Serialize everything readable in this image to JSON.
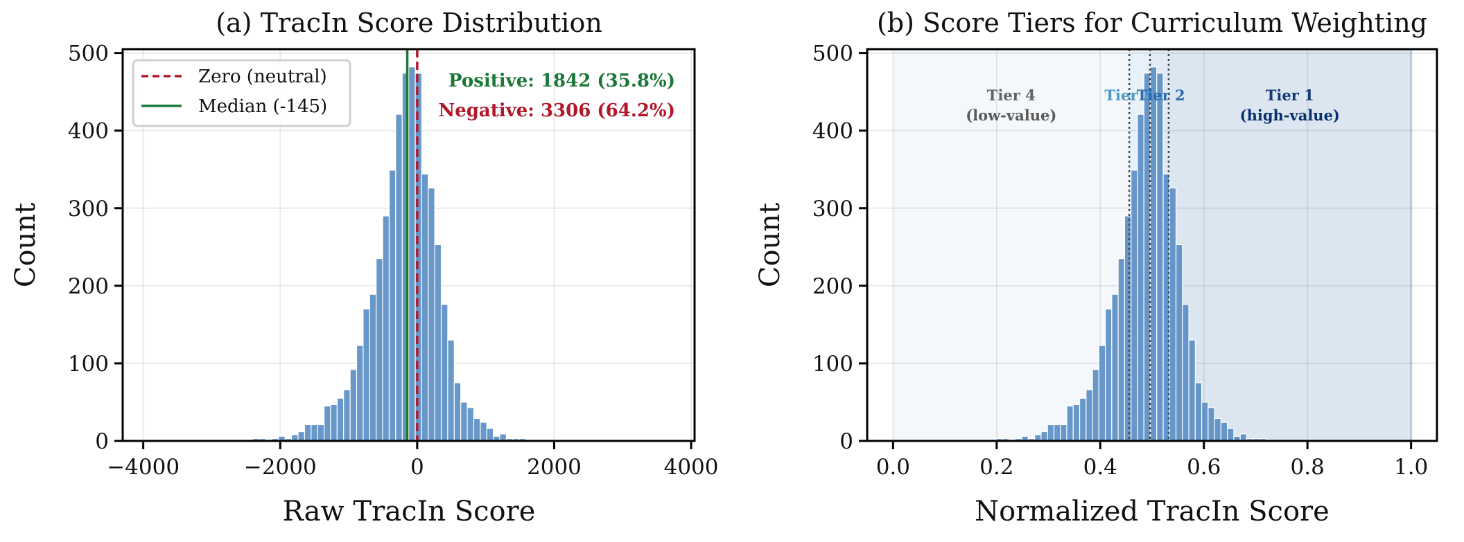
{
  "chart_data": [
    {
      "type": "bar",
      "subtype": "histogram",
      "title": "(a) TracIn Score Distribution",
      "xlabel": "Raw TracIn Score",
      "ylabel": "Count",
      "xlim": [
        -4300,
        4050
      ],
      "ylim": [
        0,
        505
      ],
      "xticks": [
        -4000,
        -2000,
        0,
        2000,
        4000
      ],
      "xtick_labels": [
        "−4000",
        "−2000",
        "0",
        "2000",
        "4000"
      ],
      "yticks": [
        0,
        100,
        200,
        300,
        400,
        500
      ],
      "ytick_labels": [
        "0",
        "100",
        "200",
        "300",
        "400",
        "500"
      ],
      "grid": true,
      "bar_color": "#5b8ec4",
      "bin_start": -2404,
      "bin_width": 95,
      "counts": [
        3,
        3,
        1,
        3,
        6,
        3,
        8,
        12,
        21,
        21,
        21,
        45,
        47,
        55,
        66,
        92,
        123,
        170,
        189,
        235,
        290,
        349,
        421,
        474,
        482,
        474,
        344,
        326,
        253,
        176,
        130,
        75,
        50,
        43,
        29,
        24,
        16,
        6,
        9,
        3,
        3,
        3,
        1
      ],
      "vlines": [
        {
          "name": "Zero (neutral)",
          "x": 0,
          "color": "#b2182b",
          "style": "dashed"
        },
        {
          "name": "Median (-145)",
          "x": -145,
          "color": "#1b7837",
          "style": "solid"
        }
      ],
      "legend": {
        "position": "upper left",
        "entries": [
          {
            "label": "Zero (neutral)",
            "color": "#b2182b",
            "style": "dashed"
          },
          {
            "label": "Median (-145)",
            "color": "#1b7837",
            "style": "solid"
          }
        ]
      },
      "annotations": [
        {
          "text": "Positive: 1842 (35.8%)",
          "color": "#1b7837"
        },
        {
          "text": "Negative: 3306 (64.2%)",
          "color": "#b2182b"
        }
      ]
    },
    {
      "type": "bar",
      "subtype": "histogram",
      "title": "(b) Score Tiers for Curriculum Weighting",
      "xlabel": "Normalized TracIn Score",
      "ylabel": "Count",
      "xlim": [
        -0.05,
        1.05
      ],
      "ylim": [
        0,
        505
      ],
      "xticks": [
        0.0,
        0.2,
        0.4,
        0.6,
        0.8,
        1.0
      ],
      "xtick_labels": [
        "0.0",
        "0.2",
        "0.4",
        "0.6",
        "0.8",
        "1.0"
      ],
      "yticks": [
        0,
        100,
        200,
        300,
        400,
        500
      ],
      "ytick_labels": [
        "0",
        "100",
        "200",
        "300",
        "400",
        "500"
      ],
      "grid": true,
      "bar_color": "#5b8ec4",
      "bin_start": 0.199,
      "bin_width": 0.0124,
      "counts": [
        3,
        3,
        1,
        3,
        6,
        3,
        8,
        12,
        21,
        21,
        21,
        45,
        47,
        55,
        66,
        92,
        123,
        170,
        189,
        235,
        290,
        349,
        421,
        474,
        482,
        474,
        344,
        326,
        253,
        176,
        130,
        75,
        50,
        43,
        29,
        24,
        16,
        6,
        9,
        3,
        3,
        3,
        1
      ],
      "tier_boundaries": [
        0.456,
        0.496,
        0.532
      ],
      "tiers": [
        {
          "label": "Tier 4",
          "sublabel": "(low-value)",
          "range": [
            0.0,
            0.456
          ],
          "shade": "#f4f8fb",
          "text_color": "#5a5a5a",
          "label_x": 0.228
        },
        {
          "label": "Tier 3",
          "sublabel": "",
          "range": [
            0.456,
            0.496
          ],
          "shade": "#e9f1f8",
          "text_color": "#4292c6",
          "label_x": 0.455
        },
        {
          "label": "Tier 2",
          "sublabel": "",
          "range": [
            0.496,
            0.532
          ],
          "shade": "#e2ebf5",
          "text_color": "#2166ac",
          "label_x": 0.517
        },
        {
          "label": "Tier 1",
          "sublabel": "(high-value)",
          "range": [
            0.532,
            1.0
          ],
          "shade": "#dce6f1",
          "text_color": "#08306b",
          "label_x": 0.766
        }
      ]
    }
  ]
}
